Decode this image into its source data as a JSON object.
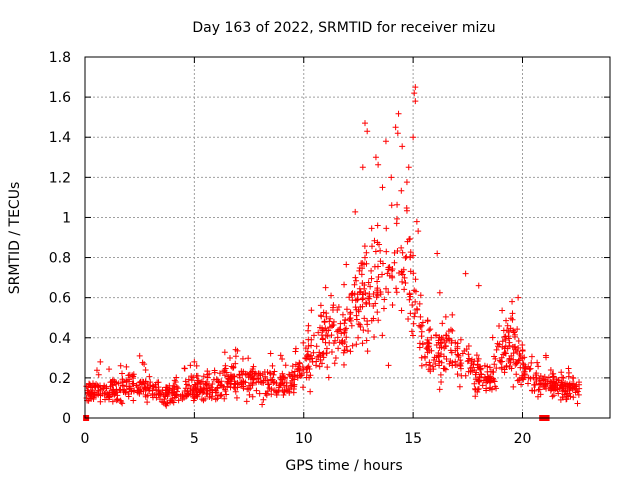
{
  "chart_data": {
    "type": "scatter",
    "title": "Day 163 of 2022, SRMTID for receiver mizu",
    "xlabel": "GPS time / hours",
    "ylabel": "SRMTID / TECUs",
    "xlim": [
      0,
      24
    ],
    "ylim": [
      0,
      1.8
    ],
    "x_ticks": [
      0,
      5,
      10,
      15,
      20
    ],
    "y_ticks": [
      0,
      0.2,
      0.4,
      0.6,
      0.8,
      1,
      1.2,
      1.4,
      1.6,
      1.8
    ],
    "x_tick_labels": [
      "0",
      "5",
      "10",
      "15",
      "20"
    ],
    "y_tick_labels": [
      "0",
      "0.2",
      "0.4",
      "0.6",
      "0.8",
      "1",
      "1.2",
      "1.4",
      "1.6",
      "1.8"
    ],
    "grid": true,
    "marker": "+",
    "color": "#ff0000",
    "series": [
      {
        "name": "SRMTID",
        "profile": [
          {
            "t": 0.0,
            "y": 0.13
          },
          {
            "t": 0.5,
            "y": 0.14
          },
          {
            "t": 1.0,
            "y": 0.13
          },
          {
            "t": 1.5,
            "y": 0.14
          },
          {
            "t": 2.0,
            "y": 0.16
          },
          {
            "t": 2.5,
            "y": 0.15
          },
          {
            "t": 3.0,
            "y": 0.14
          },
          {
            "t": 3.5,
            "y": 0.12
          },
          {
            "t": 4.0,
            "y": 0.12
          },
          {
            "t": 4.5,
            "y": 0.13
          },
          {
            "t": 5.0,
            "y": 0.15
          },
          {
            "t": 5.5,
            "y": 0.16
          },
          {
            "t": 6.0,
            "y": 0.17
          },
          {
            "t": 6.5,
            "y": 0.18
          },
          {
            "t": 7.0,
            "y": 0.18
          },
          {
            "t": 7.5,
            "y": 0.19
          },
          {
            "t": 8.0,
            "y": 0.18
          },
          {
            "t": 8.5,
            "y": 0.17
          },
          {
            "t": 9.0,
            "y": 0.17
          },
          {
            "t": 9.5,
            "y": 0.19
          },
          {
            "t": 10.0,
            "y": 0.25
          },
          {
            "t": 10.5,
            "y": 0.32
          },
          {
            "t": 11.0,
            "y": 0.42
          },
          {
            "t": 11.5,
            "y": 0.4
          },
          {
            "t": 12.0,
            "y": 0.45
          },
          {
            "t": 12.5,
            "y": 0.6
          },
          {
            "t": 13.0,
            "y": 0.72
          },
          {
            "t": 13.5,
            "y": 0.68
          },
          {
            "t": 14.0,
            "y": 0.8
          },
          {
            "t": 14.5,
            "y": 0.85
          },
          {
            "t": 15.0,
            "y": 0.7
          },
          {
            "t": 15.5,
            "y": 0.35
          },
          {
            "t": 16.0,
            "y": 0.32
          },
          {
            "t": 16.5,
            "y": 0.35
          },
          {
            "t": 17.0,
            "y": 0.28
          },
          {
            "t": 17.5,
            "y": 0.3
          },
          {
            "t": 18.0,
            "y": 0.22
          },
          {
            "t": 18.5,
            "y": 0.18
          },
          {
            "t": 19.0,
            "y": 0.3
          },
          {
            "t": 19.5,
            "y": 0.38
          },
          {
            "t": 20.0,
            "y": 0.26
          },
          {
            "t": 20.5,
            "y": 0.2
          },
          {
            "t": 21.0,
            "y": 0.17
          },
          {
            "t": 21.5,
            "y": 0.16
          },
          {
            "t": 22.0,
            "y": 0.15
          },
          {
            "t": 22.5,
            "y": 0.15
          }
        ],
        "time_range": [
          0.05,
          22.6
        ],
        "n_points": 1350,
        "peaks": [
          {
            "x": 12.8,
            "y": 1.47
          },
          {
            "x": 12.9,
            "y": 1.43
          },
          {
            "x": 13.3,
            "y": 1.3
          },
          {
            "x": 14.2,
            "y": 1.45
          },
          {
            "x": 14.3,
            "y": 1.42
          },
          {
            "x": 15.1,
            "y": 1.65
          },
          {
            "x": 15.05,
            "y": 1.62
          },
          {
            "x": 15.1,
            "y": 1.58
          },
          {
            "x": 15.0,
            "y": 1.4
          },
          {
            "x": 12.7,
            "y": 1.25
          },
          {
            "x": 13.6,
            "y": 1.15
          },
          {
            "x": 14.0,
            "y": 1.2
          },
          {
            "x": 14.8,
            "y": 1.25
          },
          {
            "x": 16.1,
            "y": 0.82
          },
          {
            "x": 17.4,
            "y": 0.72
          },
          {
            "x": 18.0,
            "y": 0.66
          },
          {
            "x": 19.8,
            "y": 0.6
          },
          {
            "x": 11.0,
            "y": 0.65
          },
          {
            "x": 2.5,
            "y": 0.31
          },
          {
            "x": 0.7,
            "y": 0.28
          }
        ],
        "zero_points": [
          {
            "x": 0.05,
            "y": 0.0
          },
          {
            "x": 20.9,
            "y": 0.0
          },
          {
            "x": 21.1,
            "y": 0.0
          }
        ]
      }
    ]
  }
}
